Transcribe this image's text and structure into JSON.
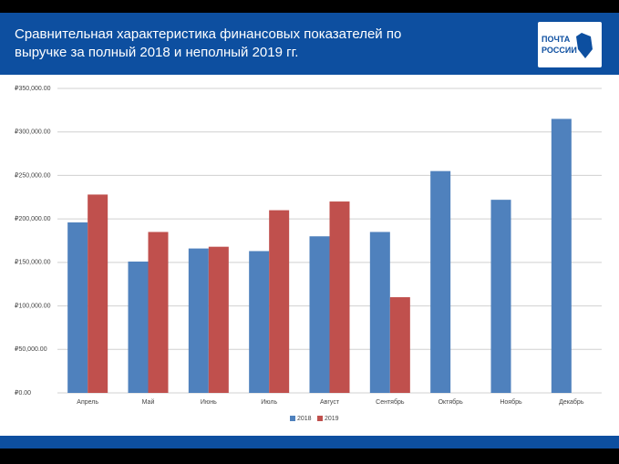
{
  "header": {
    "title": "Сравнительная характеристика финансовых показателей по выручке за полный 2018 и неполный 2019 гг.",
    "logo": [
      "ПОЧТА",
      "РОССИИ"
    ]
  },
  "chart_data": {
    "type": "bar",
    "categories": [
      "Апрель",
      "Май",
      "Июнь",
      "Июль",
      "Август",
      "Сентябрь",
      "Октябрь",
      "Ноябрь",
      "Декабрь"
    ],
    "series": [
      {
        "name": "2018",
        "color": "#4f81bd",
        "values": [
          196000,
          151000,
          166000,
          163000,
          180000,
          185000,
          255000,
          222000,
          315000
        ]
      },
      {
        "name": "2019",
        "color": "#c0504d",
        "values": [
          228000,
          185000,
          168000,
          210000,
          220000,
          110000,
          null,
          null,
          null
        ]
      }
    ],
    "ylim": [
      0,
      350000
    ],
    "yticks": [
      {
        "value": 0,
        "label": "₽0.00"
      },
      {
        "value": 50000,
        "label": "₽50,000.00"
      },
      {
        "value": 100000,
        "label": "₽100,000.00"
      },
      {
        "value": 150000,
        "label": "₽150,000.00"
      },
      {
        "value": 200000,
        "label": "₽200,000.00"
      },
      {
        "value": 250000,
        "label": "₽250,000.00"
      },
      {
        "value": 300000,
        "label": "₽300,000.00"
      },
      {
        "value": 350000,
        "label": "₽350,000.00"
      }
    ],
    "grid": true,
    "legend": "bottom"
  }
}
